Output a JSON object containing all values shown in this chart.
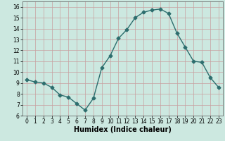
{
  "x": [
    0,
    1,
    2,
    3,
    4,
    5,
    6,
    7,
    8,
    9,
    10,
    11,
    12,
    13,
    14,
    15,
    16,
    17,
    18,
    19,
    20,
    21,
    22,
    23
  ],
  "y": [
    9.3,
    9.1,
    9.0,
    8.6,
    7.9,
    7.7,
    7.1,
    6.5,
    7.6,
    10.4,
    11.5,
    13.1,
    13.9,
    15.0,
    15.5,
    15.7,
    15.8,
    15.4,
    13.6,
    12.3,
    11.0,
    10.9,
    9.5,
    8.6
  ],
  "line_color": "#2d6e6e",
  "marker": "D",
  "markersize": 2.5,
  "linewidth": 1.0,
  "bg_color": "#cce8e0",
  "grid_color": "#c8a0a0",
  "xlabel": "Humidex (Indice chaleur)",
  "ylim": [
    6,
    16.5
  ],
  "xlim": [
    -0.5,
    23.5
  ],
  "yticks": [
    6,
    7,
    8,
    9,
    10,
    11,
    12,
    13,
    14,
    15,
    16
  ],
  "xticks": [
    0,
    1,
    2,
    3,
    4,
    5,
    6,
    7,
    8,
    9,
    10,
    11,
    12,
    13,
    14,
    15,
    16,
    17,
    18,
    19,
    20,
    21,
    22,
    23
  ],
  "tick_labelsize": 5.5,
  "xlabel_fontsize": 7.0
}
